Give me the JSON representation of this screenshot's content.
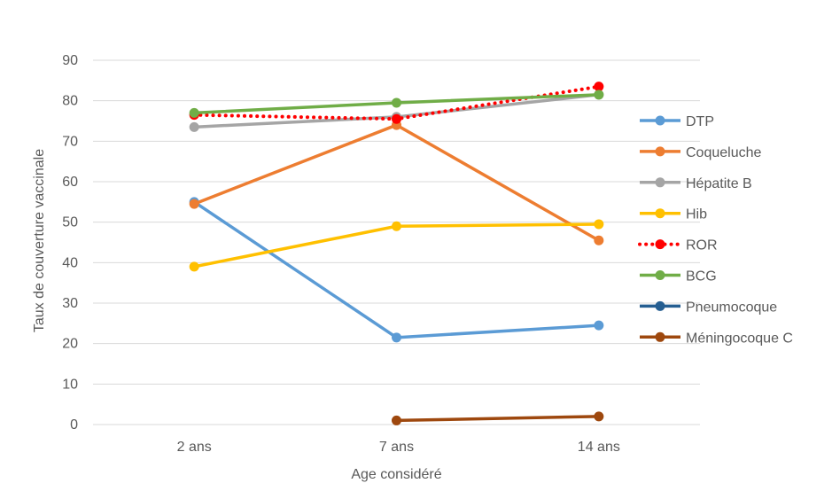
{
  "chart_data": {
    "type": "line",
    "title": "",
    "xlabel": "Age considéré",
    "ylabel": "Taux de couverture vaccinale",
    "categories": [
      "2 ans",
      "7 ans",
      "14 ans"
    ],
    "ylim": [
      0,
      90
    ],
    "yticks": [
      0,
      10,
      20,
      30,
      40,
      50,
      60,
      70,
      80,
      90
    ],
    "grid": true,
    "legend_position": "right",
    "series": [
      {
        "name": "DTP",
        "color": "#5B9BD5",
        "style": "solid",
        "values": [
          55,
          21.5,
          24.5
        ]
      },
      {
        "name": "Coqueluche",
        "color": "#ED7D31",
        "style": "solid",
        "values": [
          54.5,
          74,
          45.5
        ]
      },
      {
        "name": "Hépatite B",
        "color": "#A5A5A5",
        "style": "solid",
        "values": [
          73.5,
          76,
          81.5
        ]
      },
      {
        "name": "Hib",
        "color": "#FFC000",
        "style": "solid",
        "values": [
          39,
          49,
          49.5
        ]
      },
      {
        "name": "ROR",
        "color": "#FF0000",
        "style": "dotted",
        "values": [
          76.5,
          75.5,
          83.5
        ]
      },
      {
        "name": "BCG",
        "color": "#70AD47",
        "style": "solid",
        "values": [
          77,
          79.5,
          81.5
        ]
      },
      {
        "name": "Pneumocoque",
        "color": "#255E91",
        "style": "solid",
        "values": [
          null,
          null,
          null
        ]
      },
      {
        "name": "Méningocoque C",
        "color": "#9E480E",
        "style": "solid",
        "values": [
          null,
          1,
          2
        ]
      }
    ]
  }
}
